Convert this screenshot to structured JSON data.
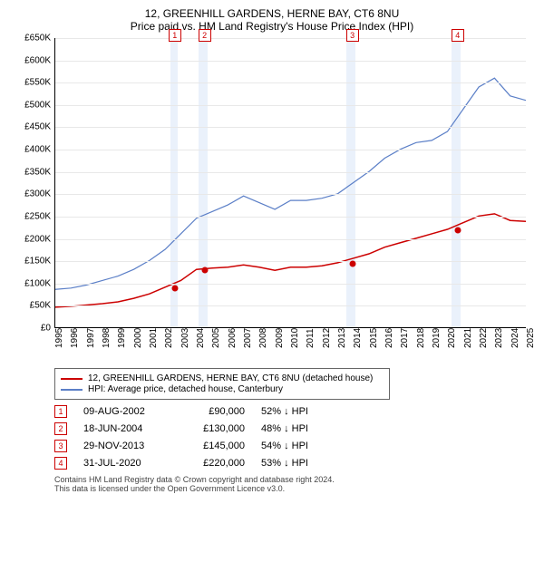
{
  "title": "12, GREENHILL GARDENS, HERNE BAY, CT6 8NU",
  "subtitle": "Price paid vs. HM Land Registry's House Price Index (HPI)",
  "chart": {
    "type": "line",
    "ylim": [
      0,
      650000
    ],
    "ytick_step": 50000,
    "y_ticks": [
      "£0",
      "£50K",
      "£100K",
      "£150K",
      "£200K",
      "£250K",
      "£300K",
      "£350K",
      "£400K",
      "£450K",
      "£500K",
      "£550K",
      "£600K",
      "£650K"
    ],
    "xlim": [
      1995,
      2025
    ],
    "x_ticks": [
      "1995",
      "1996",
      "1997",
      "1998",
      "1999",
      "2000",
      "2001",
      "2002",
      "2003",
      "2004",
      "2005",
      "2006",
      "2007",
      "2008",
      "2009",
      "2010",
      "2011",
      "2012",
      "2013",
      "2014",
      "2015",
      "2016",
      "2017",
      "2018",
      "2019",
      "2020",
      "2021",
      "2022",
      "2023",
      "2024",
      "2025"
    ],
    "grid_color": "#e8e8e8",
    "background_color": "#ffffff",
    "bands": [
      {
        "from": 2002.3,
        "to": 2002.8,
        "color": "#eaf1fb"
      },
      {
        "from": 2004.1,
        "to": 2004.7,
        "color": "#eaf1fb"
      },
      {
        "from": 2013.5,
        "to": 2014.1,
        "color": "#eaf1fb"
      },
      {
        "from": 2020.2,
        "to": 2020.8,
        "color": "#eaf1fb"
      }
    ],
    "series": [
      {
        "name": "hpi",
        "label": "HPI: Average price, detached house, Canterbury",
        "color": "#5b7fc7",
        "width": 1.2,
        "data": [
          [
            1995,
            85000
          ],
          [
            1996,
            88000
          ],
          [
            1997,
            95000
          ],
          [
            1998,
            105000
          ],
          [
            1999,
            115000
          ],
          [
            2000,
            130000
          ],
          [
            2001,
            150000
          ],
          [
            2002,
            175000
          ],
          [
            2003,
            210000
          ],
          [
            2004,
            245000
          ],
          [
            2005,
            260000
          ],
          [
            2006,
            275000
          ],
          [
            2007,
            295000
          ],
          [
            2008,
            280000
          ],
          [
            2009,
            265000
          ],
          [
            2010,
            285000
          ],
          [
            2011,
            285000
          ],
          [
            2012,
            290000
          ],
          [
            2013,
            300000
          ],
          [
            2014,
            325000
          ],
          [
            2015,
            350000
          ],
          [
            2016,
            380000
          ],
          [
            2017,
            400000
          ],
          [
            2018,
            415000
          ],
          [
            2019,
            420000
          ],
          [
            2020,
            440000
          ],
          [
            2021,
            490000
          ],
          [
            2022,
            540000
          ],
          [
            2023,
            560000
          ],
          [
            2024,
            520000
          ],
          [
            2025,
            510000
          ]
        ]
      },
      {
        "name": "property",
        "label": "12, GREENHILL GARDENS, HERNE BAY, CT6 8NU (detached house)",
        "color": "#cc0000",
        "width": 1.5,
        "data": [
          [
            1995,
            45000
          ],
          [
            1996,
            47000
          ],
          [
            1997,
            50000
          ],
          [
            1998,
            53000
          ],
          [
            1999,
            57000
          ],
          [
            2000,
            65000
          ],
          [
            2001,
            75000
          ],
          [
            2002,
            90000
          ],
          [
            2003,
            105000
          ],
          [
            2004,
            130000
          ],
          [
            2005,
            133000
          ],
          [
            2006,
            135000
          ],
          [
            2007,
            140000
          ],
          [
            2008,
            135000
          ],
          [
            2009,
            128000
          ],
          [
            2010,
            135000
          ],
          [
            2011,
            135000
          ],
          [
            2012,
            138000
          ],
          [
            2013,
            145000
          ],
          [
            2014,
            155000
          ],
          [
            2015,
            165000
          ],
          [
            2016,
            180000
          ],
          [
            2017,
            190000
          ],
          [
            2018,
            200000
          ],
          [
            2019,
            210000
          ],
          [
            2020,
            220000
          ],
          [
            2021,
            235000
          ],
          [
            2022,
            250000
          ],
          [
            2023,
            255000
          ],
          [
            2024,
            240000
          ],
          [
            2025,
            238000
          ]
        ]
      }
    ],
    "markers": [
      {
        "n": "1",
        "x": 2002.6,
        "y": 90000
      },
      {
        "n": "2",
        "x": 2004.5,
        "y": 130000
      },
      {
        "n": "3",
        "x": 2013.9,
        "y": 145000
      },
      {
        "n": "4",
        "x": 2020.6,
        "y": 220000
      }
    ]
  },
  "legend": {
    "items": [
      {
        "color": "#cc0000",
        "label": "12, GREENHILL GARDENS, HERNE BAY, CT6 8NU (detached house)"
      },
      {
        "color": "#5b7fc7",
        "label": "HPI: Average price, detached house, Canterbury"
      }
    ]
  },
  "sales": [
    {
      "n": "1",
      "date": "09-AUG-2002",
      "price": "£90,000",
      "pct": "52% ↓ HPI"
    },
    {
      "n": "2",
      "date": "18-JUN-2004",
      "price": "£130,000",
      "pct": "48% ↓ HPI"
    },
    {
      "n": "3",
      "date": "29-NOV-2013",
      "price": "£145,000",
      "pct": "54% ↓ HPI"
    },
    {
      "n": "4",
      "date": "31-JUL-2020",
      "price": "£220,000",
      "pct": "53% ↓ HPI"
    }
  ],
  "footer": {
    "line1": "Contains HM Land Registry data © Crown copyright and database right 2024.",
    "line2": "This data is licensed under the Open Government Licence v3.0."
  }
}
